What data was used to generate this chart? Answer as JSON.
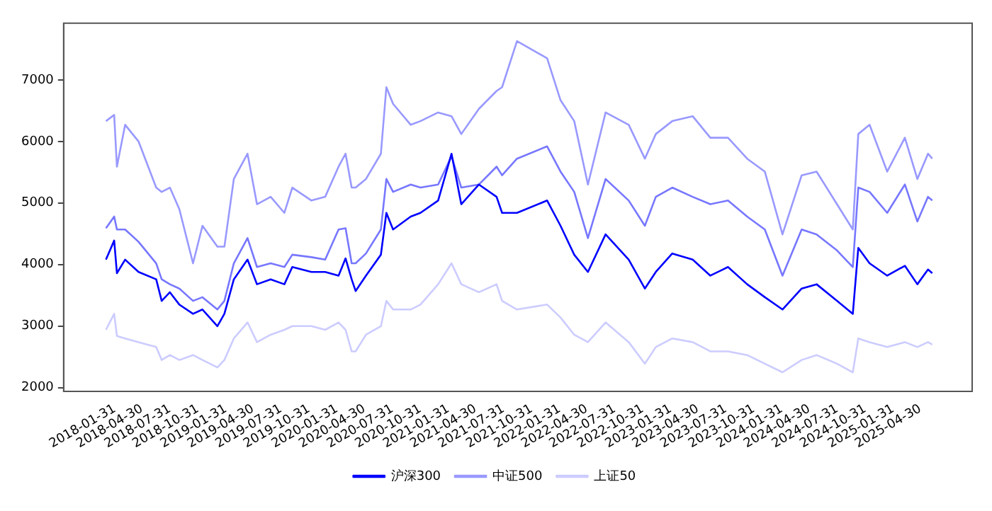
{
  "chart_data": {
    "type": "line",
    "x": [
      "2018-01-02",
      "2018-01-29",
      "2018-02-07",
      "2018-03-06",
      "2018-04-19",
      "2018-06-16",
      "2018-07-04",
      "2018-07-31",
      "2018-08-31",
      "2018-10-15",
      "2018-11-15",
      "2019-01-03",
      "2019-01-26",
      "2019-02-26",
      "2019-04-12",
      "2019-05-13",
      "2019-06-27",
      "2019-08-11",
      "2019-09-06",
      "2019-11-08",
      "2019-12-23",
      "2020-02-05",
      "2020-02-28",
      "2020-03-19",
      "2020-04-01",
      "2020-05-05",
      "2020-06-23",
      "2020-07-11",
      "2020-08-02",
      "2020-09-29",
      "2020-10-31",
      "2020-12-28",
      "2021-02-10",
      "2021-03-14",
      "2021-05-11",
      "2021-07-08",
      "2021-07-26",
      "2021-09-13",
      "2021-12-21",
      "2022-02-03",
      "2022-03-20",
      "2022-05-04",
      "2022-07-01",
      "2022-09-15",
      "2022-11-07",
      "2022-12-13",
      "2023-02-05",
      "2023-04-13",
      "2023-06-10",
      "2023-08-07",
      "2023-10-09",
      "2023-12-06",
      "2024-02-02",
      "2024-04-05",
      "2024-05-24",
      "2024-07-30",
      "2024-09-20",
      "2024-10-08",
      "2024-11-14",
      "2025-01-11",
      "2025-03-10",
      "2025-04-20",
      "2025-05-25",
      "2025-06-08"
    ],
    "series": [
      {
        "name": "沪深300",
        "color": "#0000ff",
        "values": [
          4080,
          4390,
          3860,
          4080,
          3880,
          3760,
          3410,
          3550,
          3350,
          3200,
          3270,
          3000,
          3200,
          3760,
          4080,
          3680,
          3760,
          3680,
          3960,
          3880,
          3880,
          3820,
          4100,
          3760,
          3570,
          3820,
          4160,
          4840,
          4570,
          4780,
          4840,
          5040,
          5800,
          4980,
          5300,
          5100,
          4840,
          4840,
          5040,
          4630,
          4160,
          3880,
          4490,
          4080,
          3610,
          3880,
          4180,
          4080,
          3820,
          3960,
          3680,
          3470,
          3270,
          3610,
          3680,
          3410,
          3200,
          4270,
          4020,
          3820,
          3980,
          3680,
          3920,
          3860
        ]
      },
      {
        "color": "#7777ff",
        "values": [
          4590,
          4780,
          4570,
          4570,
          4370,
          4020,
          3760,
          3680,
          3610,
          3410,
          3470,
          3270,
          3410,
          4020,
          4430,
          3960,
          4020,
          3960,
          4160,
          4120,
          4080,
          4570,
          4590,
          4020,
          4020,
          4180,
          4570,
          5390,
          5180,
          5300,
          5250,
          5300,
          5760,
          5250,
          5300,
          5590,
          5450,
          5720,
          5920,
          5510,
          5180,
          4430,
          5390,
          5040,
          4630,
          5100,
          5250,
          5100,
          4980,
          5040,
          4780,
          4570,
          3820,
          4570,
          4490,
          4230,
          3960,
          5250,
          5180,
          4840,
          5300,
          4700,
          5100,
          5040
        ]
      },
      {
        "name": "中证500",
        "color": "#9999ff",
        "values": [
          6330,
          6430,
          5590,
          6270,
          6000,
          5250,
          5180,
          5250,
          4900,
          4020,
          4630,
          4290,
          4290,
          5390,
          5800,
          4980,
          5100,
          4840,
          5250,
          5040,
          5100,
          5590,
          5800,
          5250,
          5250,
          5390,
          5800,
          6880,
          6610,
          6270,
          6330,
          6470,
          6410,
          6120,
          6530,
          6820,
          6880,
          7630,
          7350,
          6670,
          6330,
          5300,
          6470,
          6270,
          5720,
          6120,
          6330,
          6410,
          6060,
          6060,
          5720,
          5510,
          4490,
          5450,
          5510,
          4980,
          4570,
          6120,
          6270,
          5510,
          6060,
          5390,
          5800,
          5720
        ]
      },
      {
        "name": "上证50",
        "color": "#ccccff",
        "values": [
          2940,
          3200,
          2840,
          2800,
          2740,
          2660,
          2450,
          2530,
          2450,
          2530,
          2450,
          2330,
          2450,
          2800,
          3060,
          2740,
          2860,
          2940,
          3000,
          3000,
          2940,
          3060,
          2940,
          2590,
          2590,
          2860,
          3000,
          3410,
          3270,
          3270,
          3350,
          3680,
          4020,
          3680,
          3550,
          3680,
          3410,
          3270,
          3350,
          3140,
          2860,
          2740,
          3060,
          2740,
          2390,
          2660,
          2800,
          2740,
          2590,
          2590,
          2530,
          2390,
          2250,
          2450,
          2530,
          2390,
          2250,
          2800,
          2740,
          2660,
          2740,
          2660,
          2740,
          2700
        ]
      }
    ],
    "xlim": [
      "2017-08-16",
      "2025-10-17"
    ],
    "xticks": [
      "2018-01-31",
      "2018-04-30",
      "2018-07-31",
      "2018-10-31",
      "2019-01-31",
      "2019-04-30",
      "2019-07-31",
      "2019-10-31",
      "2020-01-31",
      "2020-04-30",
      "2020-07-31",
      "2020-10-31",
      "2021-01-31",
      "2021-04-30",
      "2021-07-31",
      "2021-10-31",
      "2022-01-31",
      "2022-04-30",
      "2022-07-31",
      "2022-10-31",
      "2023-01-31",
      "2023-04-30",
      "2023-07-31",
      "2023-10-31",
      "2024-01-31",
      "2024-04-30",
      "2024-07-31",
      "2024-10-31",
      "2025-01-31",
      "2025-04-30"
    ],
    "ylim": [
      1940,
      7920
    ],
    "yticks": [
      2000,
      3000,
      4000,
      5000,
      6000,
      7000
    ],
    "grid": false,
    "legend": "bottom"
  }
}
